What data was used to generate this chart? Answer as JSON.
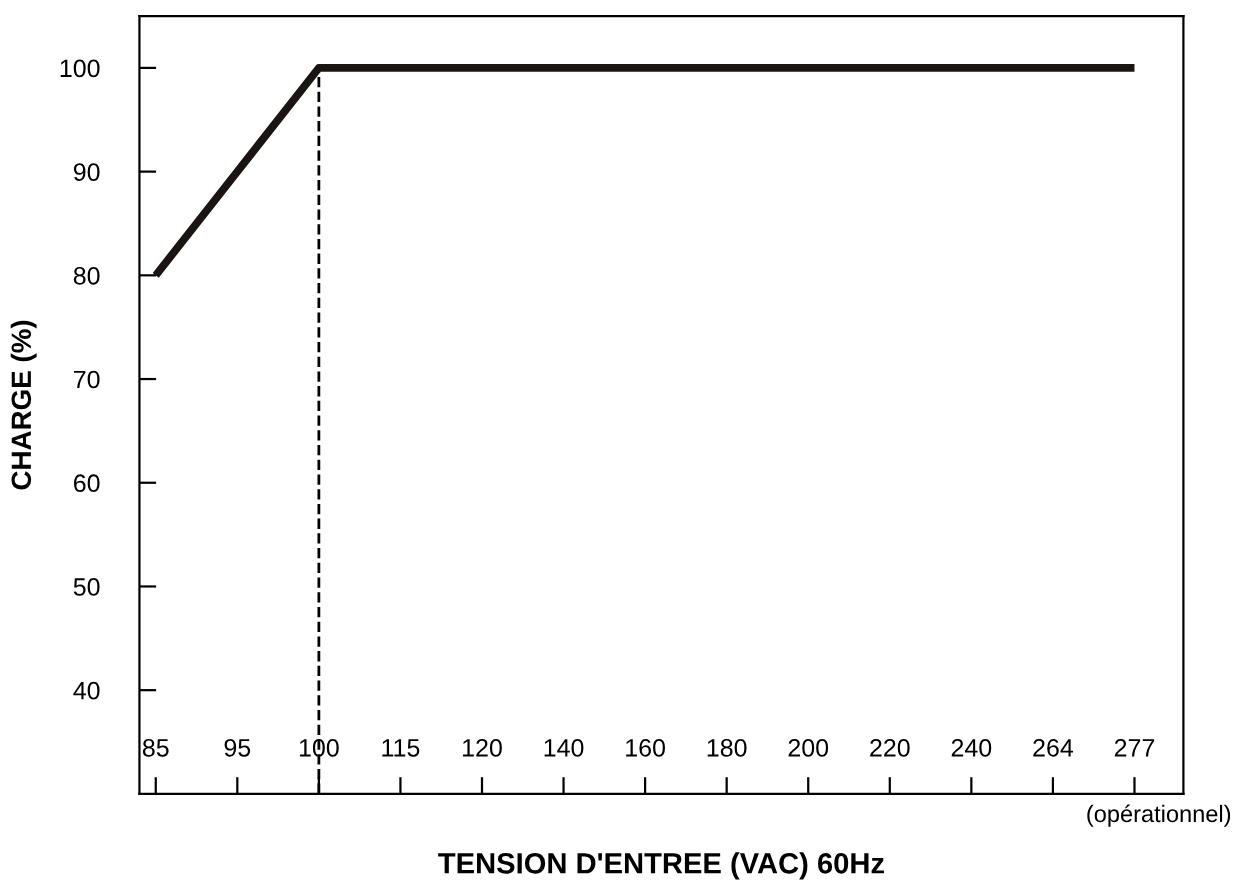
{
  "chart_data": {
    "type": "line",
    "xlabel": "TENSION D'ENTREE (VAC) 60Hz",
    "ylabel": "CHARGE (%)",
    "categories": [
      "85",
      "95",
      "100",
      "115",
      "120",
      "140",
      "160",
      "180",
      "200",
      "220",
      "240",
      "264",
      "277"
    ],
    "series": [
      {
        "color": "#1a1512",
        "values": [
          80,
          90,
          100,
          100,
          100,
          100,
          100,
          100,
          100,
          100,
          100,
          100,
          100
        ]
      }
    ],
    "ylim": [
      30,
      105
    ],
    "yticks": [
      40,
      50,
      60,
      70,
      80,
      90,
      100
    ],
    "ref_lines": [
      {
        "axis": "x",
        "value": "100",
        "color": "#000000",
        "line_style": "dashed"
      }
    ],
    "annotations": [
      "(opérationnel)"
    ],
    "grid": false,
    "marker": "none",
    "line_style": "solid"
  }
}
